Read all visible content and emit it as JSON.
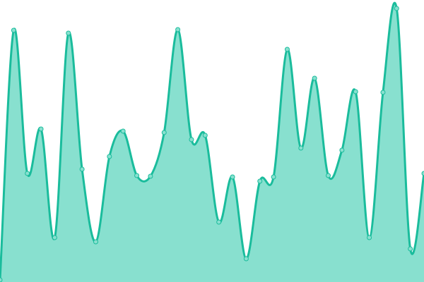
{
  "chart_data": {
    "type": "area",
    "title": "",
    "xlabel": "",
    "ylabel": "",
    "axes_visible": false,
    "grid": false,
    "legend": "none",
    "ylim": [
      0,
      400
    ],
    "curve": "smooth",
    "colors": {
      "line": "#1abc9c",
      "fill": "#88e0cf",
      "point_fill": "#88e0cf",
      "point_stroke": "#1abc9c"
    },
    "x": [
      0,
      1,
      2,
      3,
      4,
      5,
      6,
      7,
      8,
      9,
      10,
      11,
      12,
      13,
      14,
      15,
      16,
      17,
      18,
      19,
      20,
      21,
      22,
      23,
      24,
      25,
      26,
      27,
      28,
      29,
      30,
      31
    ],
    "values": [
      3,
      357,
      154,
      217,
      63,
      353,
      160,
      57,
      178,
      214,
      151,
      150,
      212,
      358,
      202,
      208,
      85,
      149,
      33,
      143,
      149,
      330,
      190,
      289,
      151,
      187,
      270,
      63,
      269,
      388,
      47,
      154
    ]
  }
}
